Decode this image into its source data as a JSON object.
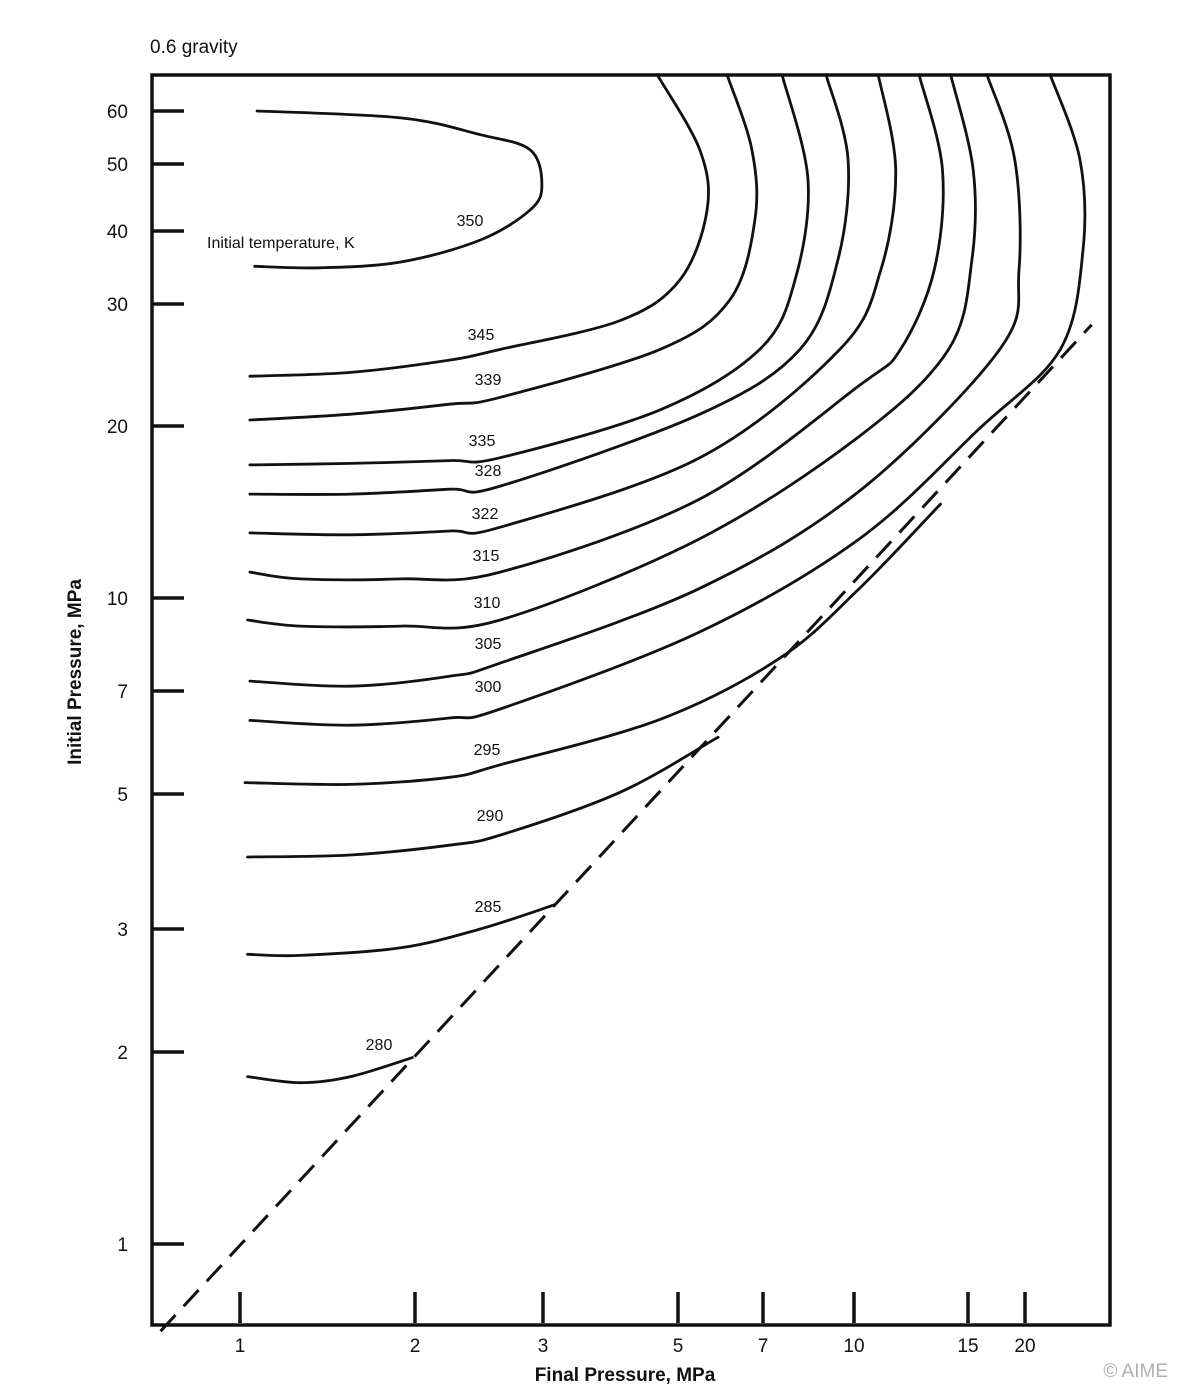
{
  "chart_data": {
    "type": "line",
    "title": "0.6 gravity",
    "xlabel": "Final Pressure, MPa",
    "ylabel": "Initial Pressure, MPa",
    "x_scale": "log",
    "y_scale": "log",
    "xlim": [
      0.7,
      31
    ],
    "ylim": [
      0.75,
      68
    ],
    "grid": false,
    "x_ticks": [
      1,
      2,
      3,
      5,
      7,
      10,
      15,
      20
    ],
    "y_ticks": [
      60,
      50,
      40,
      30,
      20,
      10,
      7,
      5,
      3,
      2,
      1
    ],
    "curve_annotation": "Initial temperature, K",
    "copyright": "© AIME",
    "series": [
      {
        "name": "350",
        "points": [
          [
            1.07,
            60
          ],
          [
            1.89,
            58.6
          ],
          [
            2.46,
            55.3
          ],
          [
            2.88,
            52.5
          ],
          [
            2.99,
            46.6
          ],
          [
            2.88,
            42.9
          ],
          [
            2.46,
            38.6
          ],
          [
            1.89,
            35.4
          ],
          [
            1.37,
            34.6
          ],
          [
            1.06,
            34.8
          ]
        ]
      },
      {
        "name": "345",
        "points": [
          [
            1.04,
            23.6
          ],
          [
            1.55,
            23.9
          ],
          [
            2.23,
            24.9
          ],
          [
            2.62,
            25.8
          ],
          [
            4.02,
            28.4
          ],
          [
            5.04,
            33.0
          ],
          [
            5.61,
            42.9
          ],
          [
            5.45,
            52.5
          ],
          [
            4.62,
            68
          ]
        ]
      },
      {
        "name": "339",
        "points": [
          [
            1.04,
            20.4
          ],
          [
            1.55,
            20.8
          ],
          [
            2.23,
            21.5
          ],
          [
            2.62,
            22.0
          ],
          [
            4.67,
            25.8
          ],
          [
            6.14,
            30.5
          ],
          [
            6.78,
            41.5
          ],
          [
            6.7,
            52.5
          ],
          [
            6.07,
            68
          ]
        ]
      },
      {
        "name": "335",
        "points": [
          [
            1.04,
            17.1
          ],
          [
            1.55,
            17.2
          ],
          [
            2.23,
            17.4
          ],
          [
            2.62,
            17.6
          ],
          [
            4.67,
            21.1
          ],
          [
            6.91,
            25.8
          ],
          [
            7.94,
            33.0
          ],
          [
            8.35,
            47.4
          ],
          [
            7.54,
            68
          ]
        ]
      },
      {
        "name": "328",
        "points": [
          [
            1.04,
            15.2
          ],
          [
            1.55,
            15.2
          ],
          [
            2.23,
            15.5
          ],
          [
            2.62,
            15.7
          ],
          [
            5.45,
            20.8
          ],
          [
            8.09,
            25.8
          ],
          [
            9.39,
            35.7
          ],
          [
            9.77,
            50.7
          ],
          [
            8.96,
            68
          ]
        ]
      },
      {
        "name": "322",
        "points": [
          [
            1.04,
            13.0
          ],
          [
            1.55,
            12.9
          ],
          [
            2.23,
            13.1
          ],
          [
            2.62,
            13.3
          ],
          [
            5.45,
            17.6
          ],
          [
            9.46,
            25.8
          ],
          [
            11.0,
            34.3
          ],
          [
            11.6,
            49.0
          ],
          [
            10.9,
            68
          ]
        ]
      },
      {
        "name": "315",
        "points": [
          [
            1.04,
            11.1
          ],
          [
            1.27,
            10.8
          ],
          [
            1.89,
            10.8
          ],
          [
            2.62,
            11.1
          ],
          [
            5.45,
            14.9
          ],
          [
            10.2,
            22.9
          ],
          [
            11.8,
            25.8
          ],
          [
            13.3,
            34.3
          ],
          [
            13.7,
            49.0
          ],
          [
            12.6,
            68
          ]
        ]
      },
      {
        "name": "310",
        "points": [
          [
            1.03,
            9.19
          ],
          [
            1.27,
            8.98
          ],
          [
            1.89,
            8.98
          ],
          [
            2.62,
            9.19
          ],
          [
            5.45,
            12.7
          ],
          [
            10.2,
            19.2
          ],
          [
            14.0,
            25.8
          ],
          [
            15.3,
            35.7
          ],
          [
            15.4,
            49.0
          ],
          [
            14.1,
            68
          ]
        ]
      },
      {
        "name": "305",
        "points": [
          [
            1.04,
            7.27
          ],
          [
            1.55,
            7.13
          ],
          [
            2.23,
            7.41
          ],
          [
            2.62,
            7.79
          ],
          [
            5.45,
            10.4
          ],
          [
            10.2,
            15.4
          ],
          [
            17.6,
            25.8
          ],
          [
            19.4,
            34.3
          ],
          [
            19.0,
            50.7
          ],
          [
            16.5,
            68
          ]
        ]
      },
      {
        "name": "300",
        "points": [
          [
            1.04,
            6.36
          ],
          [
            1.55,
            6.26
          ],
          [
            2.23,
            6.41
          ],
          [
            2.62,
            6.6
          ],
          [
            5.45,
            8.78
          ],
          [
            10.2,
            12.7
          ],
          [
            15.9,
            19.8
          ],
          [
            23.9,
            25.8
          ],
          [
            26.8,
            37.1
          ],
          [
            26.4,
            50.7
          ],
          [
            22.7,
            68
          ]
        ]
      },
      {
        "name": "295",
        "points": [
          [
            1.02,
            5.19
          ],
          [
            1.55,
            5.16
          ],
          [
            2.23,
            5.28
          ],
          [
            2.62,
            5.5
          ],
          [
            4.67,
            6.38
          ],
          [
            7.48,
            7.94
          ],
          [
            10.2,
            10.4
          ],
          [
            13.6,
            14.6
          ]
        ]
      },
      {
        "name": "290",
        "points": [
          [
            1.03,
            3.94
          ],
          [
            1.55,
            3.97
          ],
          [
            2.23,
            4.12
          ],
          [
            2.62,
            4.28
          ],
          [
            4.02,
            5.03
          ],
          [
            5.86,
            6.02
          ]
        ]
      },
      {
        "name": "285",
        "points": [
          [
            1.03,
            2.76
          ],
          [
            1.27,
            2.75
          ],
          [
            1.89,
            2.82
          ],
          [
            2.46,
            3.0
          ],
          [
            3.14,
            3.29
          ]
        ]
      },
      {
        "name": "280",
        "points": [
          [
            1.03,
            1.83
          ],
          [
            1.27,
            1.79
          ],
          [
            1.55,
            1.83
          ],
          [
            1.98,
            1.96
          ]
        ]
      }
    ],
    "boundary_line": {
      "style": "dashed",
      "x": [
        0.73,
        28
      ],
      "y": [
        0.73,
        28
      ]
    },
    "colors": {
      "line": "#111111",
      "background": "#ffffff",
      "copyright": "#b0b0b0"
    }
  }
}
